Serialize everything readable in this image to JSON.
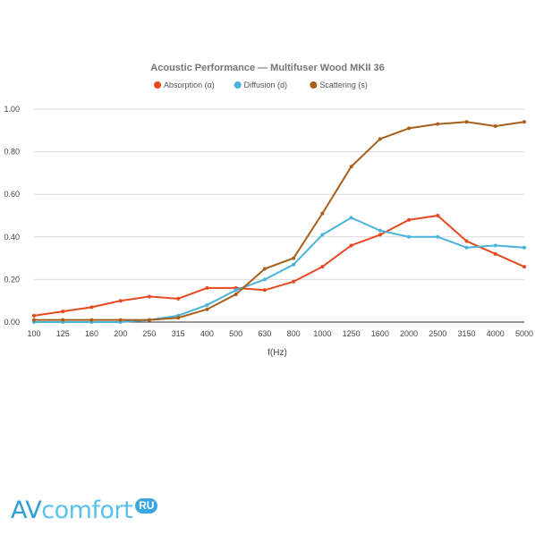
{
  "chart_data": {
    "type": "line",
    "title": "Acoustic Performance — Multifuser Wood MKII 36",
    "xlabel": "f(Hz)",
    "ylabel": "",
    "categories": [
      "100",
      "125",
      "160",
      "200",
      "250",
      "315",
      "400",
      "500",
      "630",
      "800",
      "1000",
      "1250",
      "1600",
      "2000",
      "2500",
      "3150",
      "4000",
      "5000"
    ],
    "ylim": [
      0,
      1
    ],
    "yticks": [
      "0.00",
      "0.20",
      "0.40",
      "0.60",
      "0.80",
      "1.00"
    ],
    "grid": "horizontal",
    "legend_position": "top",
    "series": [
      {
        "name": "Absorption (α)",
        "color": "#e8481e",
        "values": [
          0.03,
          0.05,
          0.07,
          0.1,
          0.12,
          0.11,
          0.16,
          0.16,
          0.15,
          0.19,
          0.26,
          0.36,
          0.41,
          0.48,
          0.5,
          0.38,
          0.32,
          0.26
        ]
      },
      {
        "name": "Diffusion (d)",
        "color": "#49b3d9",
        "values": [
          0.0,
          0.0,
          0.0,
          0.0,
          0.01,
          0.03,
          0.08,
          0.15,
          0.2,
          0.27,
          0.41,
          0.49,
          0.43,
          0.4,
          0.4,
          0.35,
          0.36,
          0.35
        ]
      },
      {
        "name": "Scattering (s)",
        "color": "#a85f1c",
        "values": [
          0.01,
          0.01,
          0.01,
          0.01,
          0.01,
          0.02,
          0.06,
          0.13,
          0.25,
          0.3,
          0.51,
          0.73,
          0.86,
          0.91,
          0.93,
          0.94,
          0.92,
          0.94
        ]
      }
    ]
  },
  "logo": {
    "part1": "AV",
    "part2": "comfort",
    "badge": "RU"
  }
}
